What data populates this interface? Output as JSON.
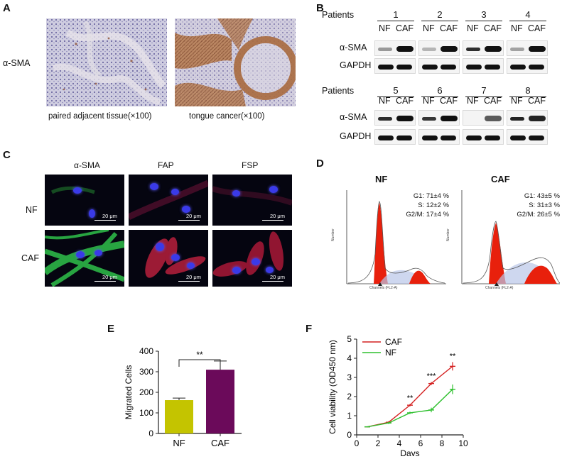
{
  "panels": {
    "A": "A",
    "B": "B",
    "C": "C",
    "D": "D",
    "E": "E",
    "F": "F"
  },
  "panelA": {
    "marker": "α-SMA",
    "caption_left": "paired adjacent tissue(×100)",
    "caption_right": "tongue cancer(×100)"
  },
  "panelB": {
    "patients_label": "Patients",
    "top_patients": [
      "1",
      "2",
      "3",
      "4"
    ],
    "bottom_patients": [
      "5",
      "6",
      "7",
      "8"
    ],
    "nf": "NF",
    "caf": "CAF",
    "row1": "α-SMA",
    "row2": "GAPDH"
  },
  "panelC": {
    "col1": "α-SMA",
    "col2": "FAP",
    "col3": "FSP",
    "row1": "NF",
    "row2": "CAF",
    "scale": "20 μm"
  },
  "panelD": {
    "nf_title": "NF",
    "caf_title": "CAF",
    "nf_stats": [
      "G1: 71±4 %",
      "S: 12±2 %",
      "G2/M: 17±4 %"
    ],
    "caf_stats": [
      "G1: 43±5 %",
      "S: 31±3 %",
      "G2/M: 26±5 %"
    ],
    "xaxis": "Channels (FL2-A)",
    "yaxis": "Number"
  },
  "chart_data": [
    {
      "type": "bar",
      "categories": [
        "NF",
        "CAF"
      ],
      "values": [
        162,
        310
      ],
      "errors": [
        10,
        42
      ],
      "colors": [
        "#c4c400",
        "#6b0a5a"
      ],
      "ylabel": "Migrated Cells",
      "ylim": [
        0,
        400
      ],
      "yticks": [
        "0",
        "100",
        "200",
        "300",
        "400"
      ],
      "significance": "**"
    },
    {
      "type": "line",
      "xlabel": "Days",
      "ylabel": "Cell viability (OD450 nm)",
      "xlim": [
        0,
        10
      ],
      "ylim": [
        0,
        5
      ],
      "xticks": [
        "0",
        "2",
        "4",
        "6",
        "8",
        "10"
      ],
      "yticks": [
        "0",
        "1",
        "2",
        "3",
        "4",
        "5"
      ],
      "series": [
        {
          "name": "CAF",
          "color": "#d42020",
          "x": [
            1,
            3,
            5,
            7,
            9
          ],
          "y": [
            0.42,
            0.66,
            1.55,
            2.68,
            3.58
          ],
          "err": [
            0.03,
            0.05,
            0.06,
            0.08,
            0.22
          ]
        },
        {
          "name": "NF",
          "color": "#2ec02e",
          "x": [
            1,
            3,
            5,
            7,
            9
          ],
          "y": [
            0.42,
            0.62,
            1.15,
            1.3,
            2.38
          ],
          "err": [
            0.03,
            0.05,
            0.06,
            0.12,
            0.25
          ]
        }
      ],
      "annotations": [
        {
          "x": 5,
          "text": "**"
        },
        {
          "x": 7,
          "text": "***"
        },
        {
          "x": 9,
          "text": "**"
        }
      ]
    }
  ]
}
